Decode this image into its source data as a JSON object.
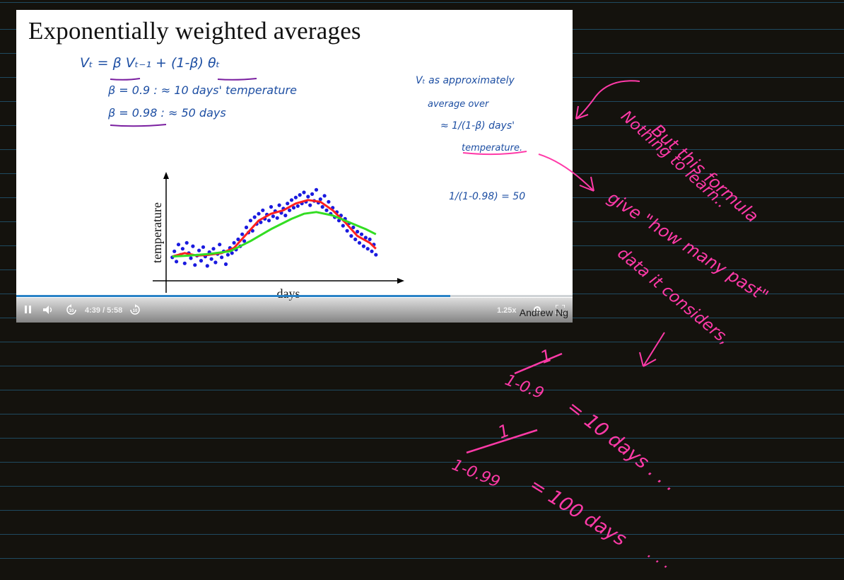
{
  "slide": {
    "title": "Exponentially weighted averages",
    "equation": "Vₜ = β Vₜ₋₁  +  (1-β) θₜ",
    "beta_line_1": "β = 0.9    :  ≈ 10 days' temperature",
    "beta_line_2": "β = 0.98   :  ≈ 50 days",
    "note_line_1": "Vₜ  as  approximately",
    "note_line_2": "average  over",
    "note_line_3": "≈  1/(1-β)  days'",
    "note_line_4": "temperature.",
    "note_calc": "1/(1-0.98)  =  50",
    "attribution": "Andrew Ng"
  },
  "chart_data": {
    "type": "scatter",
    "xlabel": "days",
    "ylabel": "temperature",
    "x_ticks": [],
    "y_ticks": [],
    "scatter_points": [
      [
        2,
        45
      ],
      [
        3,
        52
      ],
      [
        4,
        40
      ],
      [
        5,
        60
      ],
      [
        6,
        48
      ],
      [
        7,
        55
      ],
      [
        8,
        38
      ],
      [
        9,
        62
      ],
      [
        10,
        50
      ],
      [
        11,
        44
      ],
      [
        12,
        58
      ],
      [
        13,
        36
      ],
      [
        14,
        47
      ],
      [
        15,
        53
      ],
      [
        16,
        41
      ],
      [
        17,
        57
      ],
      [
        18,
        46
      ],
      [
        19,
        35
      ],
      [
        20,
        51
      ],
      [
        21,
        43
      ],
      [
        22,
        55
      ],
      [
        23,
        39
      ],
      [
        24,
        49
      ],
      [
        25,
        60
      ],
      [
        26,
        45
      ],
      [
        27,
        52
      ],
      [
        28,
        37
      ],
      [
        29,
        48
      ],
      [
        30,
        56
      ],
      [
        31,
        50
      ],
      [
        32,
        62
      ],
      [
        33,
        54
      ],
      [
        34,
        66
      ],
      [
        35,
        58
      ],
      [
        36,
        72
      ],
      [
        37,
        64
      ],
      [
        38,
        80
      ],
      [
        39,
        74
      ],
      [
        40,
        88
      ],
      [
        41,
        76
      ],
      [
        42,
        92
      ],
      [
        43,
        84
      ],
      [
        44,
        96
      ],
      [
        45,
        86
      ],
      [
        46,
        100
      ],
      [
        47,
        90
      ],
      [
        48,
        95
      ],
      [
        49,
        88
      ],
      [
        50,
        104
      ],
      [
        51,
        93
      ],
      [
        52,
        99
      ],
      [
        53,
        91
      ],
      [
        54,
        106
      ],
      [
        55,
        97
      ],
      [
        56,
        102
      ],
      [
        57,
        94
      ],
      [
        58,
        108
      ],
      [
        59,
        100
      ],
      [
        60,
        112
      ],
      [
        61,
        103
      ],
      [
        62,
        115
      ],
      [
        63,
        105
      ],
      [
        64,
        118
      ],
      [
        65,
        108
      ],
      [
        66,
        121
      ],
      [
        67,
        110
      ],
      [
        68,
        116
      ],
      [
        69,
        106
      ],
      [
        70,
        119
      ],
      [
        71,
        111
      ],
      [
        72,
        124
      ],
      [
        73,
        109
      ],
      [
        74,
        113
      ],
      [
        75,
        104
      ],
      [
        76,
        117
      ],
      [
        77,
        100
      ],
      [
        78,
        110
      ],
      [
        79,
        96
      ],
      [
        80,
        103
      ],
      [
        81,
        92
      ],
      [
        82,
        98
      ],
      [
        83,
        88
      ],
      [
        84,
        94
      ],
      [
        85,
        82
      ],
      [
        86,
        90
      ],
      [
        87,
        76
      ],
      [
        88,
        85
      ],
      [
        89,
        70
      ],
      [
        90,
        80
      ],
      [
        91,
        66
      ],
      [
        92,
        75
      ],
      [
        93,
        62
      ],
      [
        94,
        72
      ],
      [
        95,
        58
      ],
      [
        96,
        68
      ],
      [
        97,
        55
      ],
      [
        98,
        66
      ],
      [
        99,
        52
      ],
      [
        100,
        60
      ],
      [
        101,
        48
      ]
    ],
    "series": [
      {
        "name": "",
        "color": "#ff2020",
        "values": [
          [
            2,
            46
          ],
          [
            8,
            50
          ],
          [
            14,
            47
          ],
          [
            20,
            48
          ],
          [
            26,
            50
          ],
          [
            32,
            56
          ],
          [
            38,
            72
          ],
          [
            44,
            88
          ],
          [
            50,
            96
          ],
          [
            56,
            100
          ],
          [
            62,
            108
          ],
          [
            68,
            112
          ],
          [
            74,
            110
          ],
          [
            80,
            100
          ],
          [
            86,
            86
          ],
          [
            92,
            70
          ],
          [
            98,
            62
          ],
          [
            101,
            55
          ]
        ]
      },
      {
        "name": "",
        "color": "#33dd22",
        "values": [
          [
            2,
            46
          ],
          [
            10,
            47
          ],
          [
            20,
            49
          ],
          [
            30,
            52
          ],
          [
            40,
            64
          ],
          [
            50,
            78
          ],
          [
            60,
            90
          ],
          [
            66,
            96
          ],
          [
            72,
            98
          ],
          [
            80,
            94
          ],
          [
            88,
            86
          ],
          [
            96,
            78
          ],
          [
            101,
            72
          ]
        ]
      }
    ],
    "xlim": [
      0,
      110
    ],
    "ylim": [
      20,
      140
    ],
    "grid": false
  },
  "player": {
    "time": "4:39 / 5:58",
    "rewind_label": "10",
    "forward_label": "10",
    "speed": "1.25x",
    "progress": 0.78
  },
  "annotations": {
    "a1": "Nothing to learn..",
    "a2": "But this formula",
    "a3": "give \"how many past\"",
    "a4": "data it considers,",
    "f1_num": "1",
    "f1_den": "1-0.9",
    "f1_res": "= 10 days . . .",
    "f2_num": "1",
    "f2_den": "1-0.99",
    "f2_res": "= 100 days",
    "f2_dots": ". . ."
  }
}
